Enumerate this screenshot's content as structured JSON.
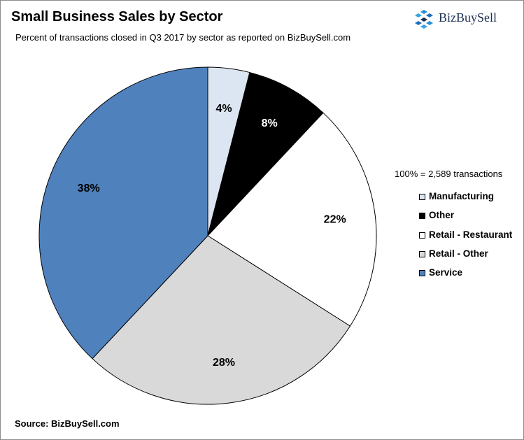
{
  "header": {
    "title": "Small Business Sales by Sector",
    "subtitle": "Percent of transactions closed in Q3 2017  by sector as reported on BizBuySell.com"
  },
  "logo": {
    "text": "BizBuySell",
    "icon": "bizbuysell-cube-logo-icon",
    "color": "#1b3050"
  },
  "note": "100% = 2,589 transactions",
  "source": "Source: BizBuySell.com",
  "chart_data": {
    "type": "pie",
    "title": "Small Business Sales by Sector",
    "subtitle": "Percent of transactions closed in Q3 2017  by sector as reported on BizBuySell.com",
    "total_note": "100% = 2,589 transactions",
    "legend_position": "right",
    "categories": [
      "Manufacturing",
      "Other",
      "Retail - Restaurant",
      "Retail - Other",
      "Service"
    ],
    "values": [
      4,
      8,
      22,
      28,
      38
    ],
    "labels": [
      "4%",
      "8%",
      "22%",
      "28%",
      "38%"
    ],
    "colors": [
      "#dce6f2",
      "#000000",
      "#ffffff",
      "#d9d9d9",
      "#4f81bd"
    ],
    "label_colors": [
      "#000000",
      "#ffffff",
      "#000000",
      "#000000",
      "#000000"
    ]
  }
}
